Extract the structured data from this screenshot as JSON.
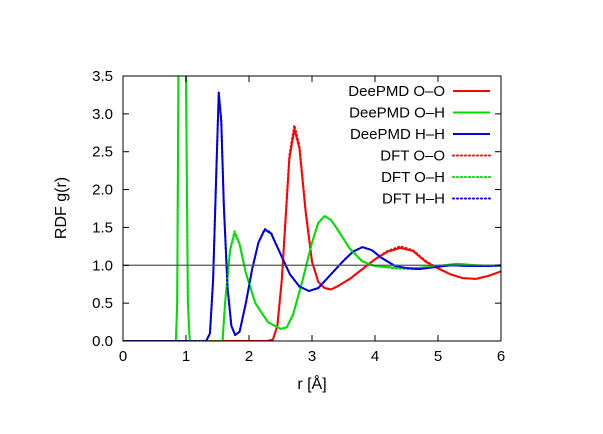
{
  "chart_data": {
    "type": "line",
    "xlabel": "r [Å]",
    "ylabel": "RDF g(r)",
    "xlim": [
      0,
      6
    ],
    "ylim": [
      0,
      3.5
    ],
    "x_ticks": [
      "0",
      "1",
      "2",
      "3",
      "4",
      "5",
      "6"
    ],
    "y_ticks": [
      "0.0",
      "0.5",
      "1.0",
      "1.5",
      "2.0",
      "2.5",
      "3.0",
      "3.5"
    ],
    "reference_line": 1.0,
    "grid": false,
    "legend_position": "top-right",
    "series": [
      {
        "name": "DeePMD O–O",
        "color": "#ff0000",
        "dash": "solid",
        "points": [
          [
            0,
            0
          ],
          [
            2.3,
            0
          ],
          [
            2.38,
            0.02
          ],
          [
            2.45,
            0.2
          ],
          [
            2.52,
            0.8
          ],
          [
            2.58,
            1.6
          ],
          [
            2.64,
            2.4
          ],
          [
            2.72,
            2.8
          ],
          [
            2.8,
            2.55
          ],
          [
            2.9,
            1.7
          ],
          [
            3.0,
            1.05
          ],
          [
            3.1,
            0.78
          ],
          [
            3.2,
            0.7
          ],
          [
            3.3,
            0.68
          ],
          [
            3.4,
            0.72
          ],
          [
            3.6,
            0.82
          ],
          [
            3.8,
            0.95
          ],
          [
            4.0,
            1.08
          ],
          [
            4.2,
            1.18
          ],
          [
            4.4,
            1.23
          ],
          [
            4.6,
            1.19
          ],
          [
            4.8,
            1.05
          ],
          [
            5.0,
            0.96
          ],
          [
            5.2,
            0.88
          ],
          [
            5.4,
            0.83
          ],
          [
            5.6,
            0.82
          ],
          [
            5.8,
            0.86
          ],
          [
            6.0,
            0.92
          ]
        ]
      },
      {
        "name": "DeePMD O–H",
        "color": "#00dd00",
        "dash": "solid",
        "points": [
          [
            0,
            0
          ],
          [
            0.84,
            0
          ],
          [
            0.86,
            0.5
          ],
          [
            0.88,
            3.5
          ],
          [
            0.94,
            4.2
          ],
          [
            1.0,
            3.5
          ],
          [
            1.03,
            0.5
          ],
          [
            1.06,
            0
          ],
          [
            1.58,
            0
          ],
          [
            1.62,
            0.5
          ],
          [
            1.7,
            1.2
          ],
          [
            1.77,
            1.43
          ],
          [
            1.85,
            1.28
          ],
          [
            1.95,
            0.9
          ],
          [
            2.1,
            0.5
          ],
          [
            2.3,
            0.25
          ],
          [
            2.5,
            0.16
          ],
          [
            2.6,
            0.18
          ],
          [
            2.7,
            0.35
          ],
          [
            2.85,
            0.8
          ],
          [
            3.0,
            1.3
          ],
          [
            3.1,
            1.56
          ],
          [
            3.2,
            1.65
          ],
          [
            3.3,
            1.6
          ],
          [
            3.4,
            1.48
          ],
          [
            3.6,
            1.22
          ],
          [
            3.8,
            1.05
          ],
          [
            4.0,
            0.99
          ],
          [
            4.3,
            0.97
          ],
          [
            4.6,
            0.96
          ],
          [
            5.0,
            0.99
          ],
          [
            5.3,
            1.02
          ],
          [
            5.6,
            1.0
          ],
          [
            6.0,
            0.99
          ]
        ]
      },
      {
        "name": "DeePMD H–H",
        "color": "#0000dd",
        "dash": "solid",
        "points": [
          [
            0,
            0
          ],
          [
            1.32,
            0
          ],
          [
            1.38,
            0.1
          ],
          [
            1.43,
            0.8
          ],
          [
            1.48,
            2.2
          ],
          [
            1.52,
            3.28
          ],
          [
            1.56,
            2.9
          ],
          [
            1.6,
            1.8
          ],
          [
            1.66,
            0.7
          ],
          [
            1.72,
            0.2
          ],
          [
            1.78,
            0.08
          ],
          [
            1.85,
            0.12
          ],
          [
            1.95,
            0.5
          ],
          [
            2.05,
            0.95
          ],
          [
            2.15,
            1.3
          ],
          [
            2.25,
            1.47
          ],
          [
            2.35,
            1.42
          ],
          [
            2.5,
            1.15
          ],
          [
            2.65,
            0.88
          ],
          [
            2.8,
            0.72
          ],
          [
            2.95,
            0.66
          ],
          [
            3.1,
            0.7
          ],
          [
            3.3,
            0.88
          ],
          [
            3.5,
            1.06
          ],
          [
            3.65,
            1.18
          ],
          [
            3.8,
            1.24
          ],
          [
            3.95,
            1.2
          ],
          [
            4.1,
            1.1
          ],
          [
            4.3,
            1.0
          ],
          [
            4.5,
            0.96
          ],
          [
            4.7,
            0.95
          ],
          [
            4.9,
            0.97
          ],
          [
            5.2,
            1.0
          ],
          [
            5.5,
            0.99
          ],
          [
            5.8,
            0.99
          ],
          [
            6.0,
            1.0
          ]
        ]
      },
      {
        "name": "DFT O–O",
        "color": "#ff0000",
        "dash": "dotted",
        "points": [
          [
            0,
            0
          ],
          [
            2.3,
            0
          ],
          [
            2.38,
            0.02
          ],
          [
            2.45,
            0.2
          ],
          [
            2.52,
            0.8
          ],
          [
            2.58,
            1.62
          ],
          [
            2.64,
            2.45
          ],
          [
            2.72,
            2.85
          ],
          [
            2.8,
            2.58
          ],
          [
            2.9,
            1.72
          ],
          [
            3.0,
            1.05
          ],
          [
            3.1,
            0.78
          ],
          [
            3.2,
            0.7
          ],
          [
            3.3,
            0.68
          ],
          [
            3.4,
            0.72
          ],
          [
            3.6,
            0.82
          ],
          [
            3.8,
            0.95
          ],
          [
            4.0,
            1.08
          ],
          [
            4.2,
            1.19
          ],
          [
            4.4,
            1.25
          ],
          [
            4.6,
            1.2
          ],
          [
            4.8,
            1.06
          ],
          [
            5.0,
            0.96
          ],
          [
            5.2,
            0.88
          ],
          [
            5.4,
            0.83
          ],
          [
            5.6,
            0.82
          ],
          [
            5.8,
            0.86
          ],
          [
            6.0,
            0.92
          ]
        ]
      },
      {
        "name": "DFT O–H",
        "color": "#00dd00",
        "dash": "dotted",
        "points": [
          [
            0,
            0
          ],
          [
            0.84,
            0
          ],
          [
            0.86,
            0.5
          ],
          [
            0.88,
            3.5
          ],
          [
            0.94,
            4.2
          ],
          [
            1.0,
            3.5
          ],
          [
            1.03,
            0.5
          ],
          [
            1.06,
            0
          ],
          [
            1.58,
            0
          ],
          [
            1.62,
            0.5
          ],
          [
            1.7,
            1.2
          ],
          [
            1.77,
            1.45
          ],
          [
            1.85,
            1.29
          ],
          [
            1.95,
            0.9
          ],
          [
            2.1,
            0.5
          ],
          [
            2.3,
            0.25
          ],
          [
            2.5,
            0.16
          ],
          [
            2.6,
            0.18
          ],
          [
            2.7,
            0.35
          ],
          [
            2.85,
            0.8
          ],
          [
            3.0,
            1.3
          ],
          [
            3.1,
            1.56
          ],
          [
            3.2,
            1.65
          ],
          [
            3.3,
            1.6
          ],
          [
            3.4,
            1.48
          ],
          [
            3.6,
            1.22
          ],
          [
            3.8,
            1.05
          ],
          [
            4.0,
            0.99
          ],
          [
            4.3,
            0.96
          ],
          [
            4.6,
            0.95
          ],
          [
            5.0,
            0.99
          ],
          [
            5.3,
            1.02
          ],
          [
            5.6,
            1.0
          ],
          [
            6.0,
            0.99
          ]
        ]
      },
      {
        "name": "DFT H–H",
        "color": "#0000dd",
        "dash": "dotted",
        "points": [
          [
            0,
            0
          ],
          [
            1.32,
            0
          ],
          [
            1.38,
            0.1
          ],
          [
            1.43,
            0.8
          ],
          [
            1.48,
            2.2
          ],
          [
            1.52,
            3.28
          ],
          [
            1.56,
            2.9
          ],
          [
            1.6,
            1.8
          ],
          [
            1.66,
            0.7
          ],
          [
            1.72,
            0.2
          ],
          [
            1.78,
            0.08
          ],
          [
            1.85,
            0.12
          ],
          [
            1.95,
            0.5
          ],
          [
            2.05,
            0.95
          ],
          [
            2.15,
            1.3
          ],
          [
            2.25,
            1.48
          ],
          [
            2.35,
            1.43
          ],
          [
            2.5,
            1.15
          ],
          [
            2.65,
            0.88
          ],
          [
            2.8,
            0.72
          ],
          [
            2.95,
            0.66
          ],
          [
            3.1,
            0.7
          ],
          [
            3.3,
            0.88
          ],
          [
            3.5,
            1.06
          ],
          [
            3.65,
            1.18
          ],
          [
            3.8,
            1.24
          ],
          [
            3.95,
            1.2
          ],
          [
            4.1,
            1.1
          ],
          [
            4.3,
            1.0
          ],
          [
            4.5,
            0.96
          ],
          [
            4.7,
            0.95
          ],
          [
            4.9,
            0.97
          ],
          [
            5.2,
            1.0
          ],
          [
            5.5,
            0.99
          ],
          [
            5.8,
            0.99
          ],
          [
            6.0,
            1.0
          ]
        ]
      }
    ]
  }
}
